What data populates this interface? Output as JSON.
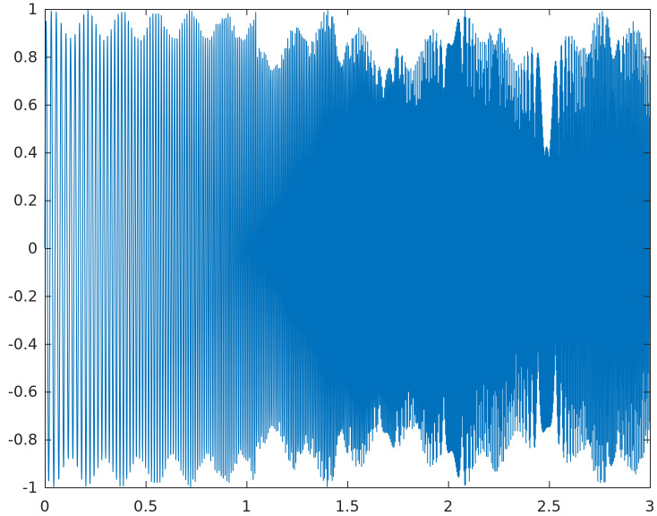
{
  "chart_data": {
    "type": "line",
    "title": "",
    "xlabel": "",
    "ylabel": "",
    "xlim": [
      0,
      3
    ],
    "ylim": [
      -1,
      1
    ],
    "grid": false,
    "legend": "none",
    "x_ticks": [
      0,
      0.5,
      1,
      1.5,
      2,
      2.5,
      3
    ],
    "x_tick_labels": [
      "0",
      "0.5",
      "1",
      "1.5",
      "2",
      "2.5",
      "3"
    ],
    "y_ticks": [
      1,
      0.8,
      0.6,
      0.4,
      0.2,
      0,
      -0.2,
      -0.4,
      -0.6,
      -0.8,
      -1
    ],
    "y_tick_labels": [
      "1",
      "0.8",
      "0.6",
      "0.4",
      "0.2",
      "0",
      "-0.2",
      "-0.4",
      "-0.6",
      "-0.8",
      "-1"
    ],
    "series": [
      {
        "color": "#0072BD",
        "description": "dense oscillation between -1 and 1 over x from 0 to 3",
        "samples": 3000
      }
    ]
  }
}
